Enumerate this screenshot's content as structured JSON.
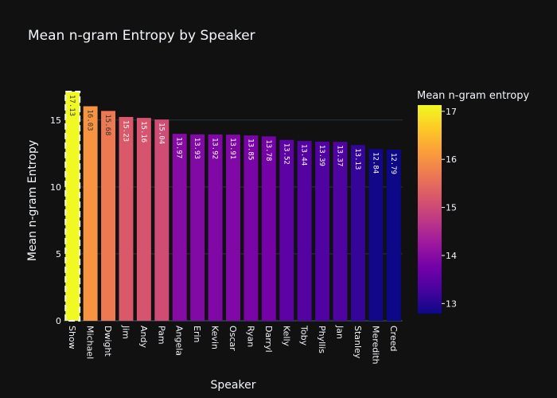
{
  "chart_data": {
    "type": "bar",
    "title": "Mean n-gram Entropy by Speaker",
    "xlabel": "Speaker",
    "ylabel": "Mean n-gram Entropy",
    "categories": [
      "Show",
      "Michael",
      "Dwight",
      "Jim",
      "Andy",
      "Pam",
      "Angela",
      "Erin",
      "Kevin",
      "Oscar",
      "Ryan",
      "Darryl",
      "Kelly",
      "Toby",
      "Phyllis",
      "Jan",
      "Stanley",
      "Meredith",
      "Creed"
    ],
    "values": [
      17.13,
      16.03,
      15.68,
      15.23,
      15.16,
      15.04,
      13.97,
      13.93,
      13.92,
      13.91,
      13.85,
      13.78,
      13.52,
      13.44,
      13.39,
      13.37,
      13.13,
      12.84,
      12.79
    ],
    "data_labels": [
      "17.13",
      "16.03",
      "15.68",
      "15.23",
      "15.16",
      "15.04",
      "13.97",
      "13.93",
      "13.92",
      "13.91",
      "13.85",
      "13.78",
      "13.52",
      "13.44",
      "13.39",
      "13.37",
      "13.13",
      "12.84",
      "12.79"
    ],
    "highlighted_category": "Show",
    "ylim": [
      0,
      17.13
    ],
    "yticks": [
      0,
      5,
      10,
      15
    ],
    "grid": true,
    "colorbar": {
      "title": "Mean n-gram entropy",
      "ticks": [
        13,
        14,
        15,
        16,
        17
      ],
      "range": [
        12.79,
        17.13
      ],
      "colorscale": [
        "#0d0887",
        "#46039f",
        "#7201a8",
        "#9c179e",
        "#bd3786",
        "#d8576b",
        "#ed7953",
        "#fb9f3a",
        "#fdca26",
        "#f0f921"
      ]
    },
    "colors": {
      "background": "#111111",
      "grid": "#283442",
      "text": "#f2f5fa",
      "highlight_outline": "#f2f5fa"
    }
  }
}
